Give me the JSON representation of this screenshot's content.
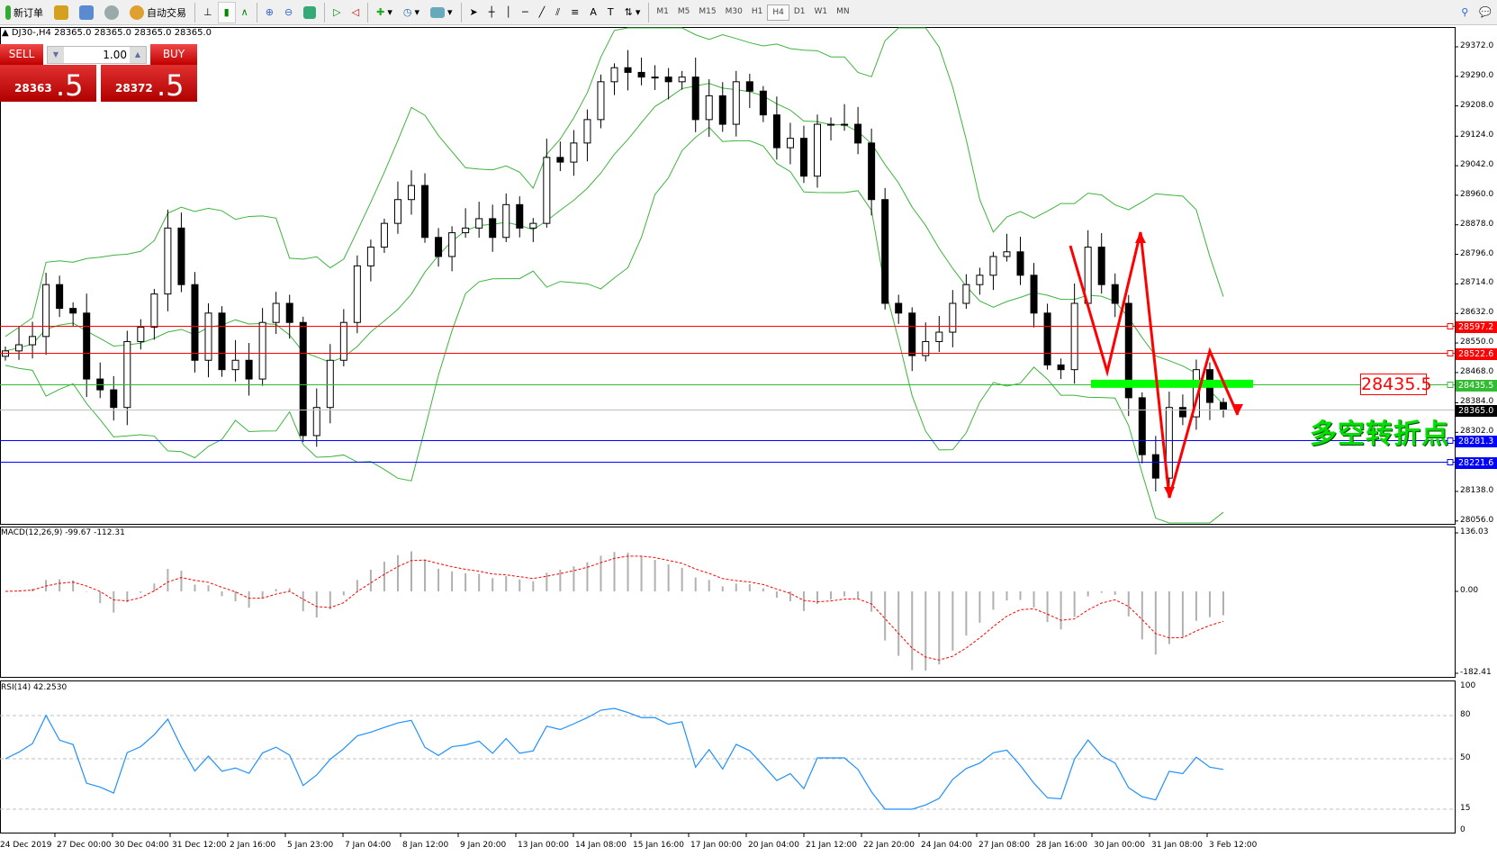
{
  "toolbar": {
    "new_order": "新订单",
    "auto_trading": "自动交易",
    "timeframes": [
      "M1",
      "M5",
      "M15",
      "M30",
      "H1",
      "H4",
      "D1",
      "W1",
      "MN"
    ],
    "active_timeframe": "H4",
    "icons": [
      "market-watch-icon",
      "data-window-icon",
      "signals-icon",
      "bar-chart-icon",
      "candlestick-icon",
      "line-chart-icon",
      "zoom-in-icon",
      "zoom-out-icon",
      "tile-windows-icon",
      "autoscroll-icon",
      "chart-shift-icon",
      "new-chart-icon",
      "periods-icon",
      "templates-icon",
      "cursor-icon",
      "crosshair-icon",
      "vertical-line-icon",
      "horizontal-line-icon",
      "trendline-icon",
      "equidistant-channel-icon",
      "fibonacci-icon",
      "text-icon",
      "text-label-icon",
      "arrows-icon",
      "search-icon",
      "chat-icon"
    ]
  },
  "symbol_info": "DJ30-,H4  28365.0 28365.0 28365.0 28365.0",
  "trade_panel": {
    "sell_label": "SELL",
    "buy_label": "BUY",
    "lot": "1.00",
    "sell_price_main": "28363",
    "sell_price_big": ".5",
    "buy_price_main": "28372",
    "buy_price_big": ".5"
  },
  "annotation": {
    "level_box": "28435.5",
    "text": "多空转折点",
    "zigzag_color": "#ff0000",
    "highlight_color": "#00ff00"
  },
  "macd_label": "MACD(12,26,9) -99.67 -112.31",
  "rsi_label": "RSI(14) 42.2530",
  "chart_data": [
    {
      "type": "candlestick",
      "symbol": "DJ30-",
      "timeframe": "H4",
      "price_axis_ticks": [
        "29372.0",
        "29290.0",
        "29208.0",
        "29124.0",
        "29042.0",
        "28960.0",
        "28878.0",
        "28796.0",
        "28714.0",
        "28632.0",
        "28550.0",
        "28468.0",
        "28384.0",
        "28302.0",
        "28138.0",
        "28056.0"
      ],
      "ylim": [
        28056,
        29430
      ],
      "x_tick_labels": [
        "24 Dec 2019",
        "27 Dec 00:00",
        "30 Dec 04:00",
        "31 Dec 12:00",
        "2 Jan 16:00",
        "5 Jan 23:00",
        "7 Jan 04:00",
        "8 Jan 12:00",
        "9 Jan 20:00",
        "13 Jan 00:00",
        "14 Jan 08:00",
        "15 Jan 16:00",
        "17 Jan 00:00",
        "20 Jan 04:00",
        "21 Jan 12:00",
        "22 Jan 20:00",
        "24 Jan 04:00",
        "27 Jan 08:00",
        "28 Jan 16:00",
        "30 Jan 00:00",
        "31 Jan 08:00",
        "3 Feb 12:00"
      ],
      "closes": [
        28528,
        28545,
        28568,
        28712,
        28646,
        28633,
        28450,
        28420,
        28371,
        28554,
        28594,
        28686,
        28869,
        28712,
        28502,
        28633,
        28476,
        28502,
        28450,
        28607,
        28660,
        28607,
        28293,
        28371,
        28502,
        28607,
        28764,
        28816,
        28882,
        28948,
        28987,
        28843,
        28790,
        28856,
        28869,
        28895,
        28843,
        28934,
        28869,
        28882,
        29065,
        29052,
        29105,
        29170,
        29275,
        29314,
        29301,
        29288,
        29288,
        29275,
        29288,
        29170,
        29236,
        29157,
        29275,
        29249,
        29183,
        29092,
        29118,
        29013,
        29157,
        29157,
        29157,
        29105,
        28948,
        28660,
        28633,
        28515,
        28554,
        28580,
        28660,
        28712,
        28738,
        28790,
        28803,
        28738,
        28633,
        28489,
        28476,
        28660,
        28816,
        28712,
        28660,
        28398,
        28240,
        28175,
        28371,
        28345,
        28476,
        28385,
        28365
      ],
      "indicators": [
        "Bollinger Bands",
        "MACD(12,26,9)",
        "RSI(14)"
      ],
      "horizontal_levels": [
        {
          "value": "28597.2",
          "color": "#ff0000"
        },
        {
          "value": "28522.6",
          "color": "#ff0000"
        },
        {
          "value": "28435.5",
          "color": "#33bb33"
        },
        {
          "value": "28365.0",
          "color": "#000000",
          "current": true
        },
        {
          "value": "28281.3",
          "color": "#0000ff"
        },
        {
          "value": "28221.6",
          "color": "#0000ff"
        }
      ]
    },
    {
      "type": "bar+line",
      "name": "MACD(12,26,9)",
      "axis_ticks": [
        "136.03",
        "0.00",
        "-182.41"
      ],
      "ylim": [
        -182.41,
        136.03
      ],
      "last_values": [
        -99.67,
        -112.31
      ]
    },
    {
      "type": "line",
      "name": "RSI(14)",
      "axis_ticks": [
        "100",
        "80",
        "50",
        "15",
        "0"
      ],
      "levels": [
        80,
        50,
        15
      ],
      "ylim": [
        0,
        100
      ],
      "last_value": 42.253,
      "color": "#1e90ff"
    }
  ]
}
